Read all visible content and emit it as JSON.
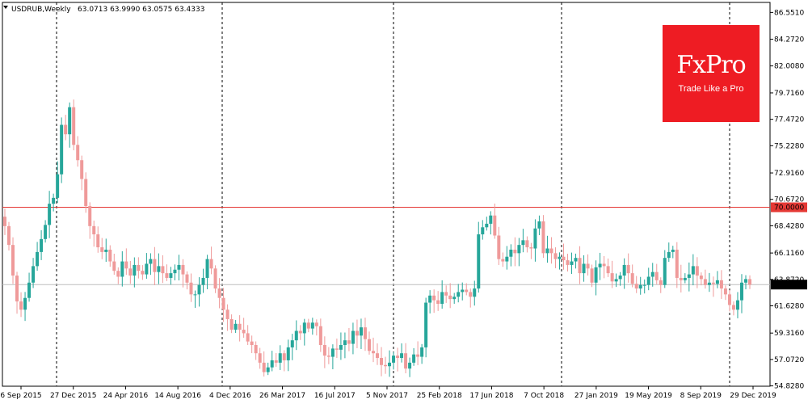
{
  "header": {
    "symbol": "USDRUB,Weekly",
    "ohlc": "63.0713 63.9990 63.0575 63.4333"
  },
  "logo": {
    "brand": "FxPro",
    "tagline": "Trade Like a Pro"
  },
  "colors": {
    "up": "#26a69a",
    "down": "#ef9a9a",
    "level_line": "#e53935",
    "price_line": "#bdbdbd",
    "logo_bg": "#ee1c23"
  },
  "chart_data": {
    "type": "candlestick",
    "title": "USDRUB,Weekly",
    "ylim": [
      54.8,
      87.4
    ],
    "y_ticks": [
      "86.5510",
      "84.2720",
      "82.0080",
      "79.7160",
      "77.4720",
      "75.2280",
      "72.9160",
      "70.6720",
      "68.4280",
      "66.1160",
      "63.8720",
      "61.6280",
      "59.3160",
      "57.0720",
      "54.8280"
    ],
    "x_ticks": [
      "6 Sep 2015",
      "27 Dec 2015",
      "24 Apr 2016",
      "14 Aug 2016",
      "4 Dec 2016",
      "26 Mar 2017",
      "16 Jul 2017",
      "5 Nov 2017",
      "25 Feb 2018",
      "17 Jun 2018",
      "7 Oct 2018",
      "27 Jan 2019",
      "19 May 2019",
      "8 Sep 2019",
      "29 Dec 2019"
    ],
    "period_separators": [
      "27 Dec 2015",
      "4 Dec 2016",
      "5 Nov 2017",
      "7 Oct 2018",
      "29 Dec 2019"
    ],
    "level_line": {
      "value": 70.0,
      "label": "70.0000"
    },
    "current_price": {
      "value": 63.4333,
      "label": "63.4333"
    },
    "close": [
      68.4,
      66.8,
      64.2,
      62.0,
      61.3,
      62.3,
      63.6,
      65.0,
      66.2,
      67.3,
      68.5,
      70.3,
      70.8,
      72.8,
      77.0,
      76.2,
      78.5,
      75.3,
      74.0,
      72.4,
      70.1,
      68.4,
      67.7,
      66.6,
      66.2,
      66.4,
      65.4,
      64.6,
      64.1,
      65.4,
      64.8,
      64.2,
      65.1,
      64.6,
      64.3,
      65.2,
      65.6,
      64.5,
      65.0,
      64.4,
      64.0,
      64.4,
      64.7,
      65.1,
      64.3,
      63.6,
      62.6,
      62.6,
      63.4,
      64.0,
      65.6,
      64.8,
      63.1,
      62.3,
      61.3,
      60.5,
      59.6,
      60.1,
      59.6,
      59.3,
      58.6,
      58.3,
      57.6,
      56.8,
      56.0,
      56.4,
      57.0,
      56.8,
      57.6,
      57.0,
      58.1,
      58.7,
      59.5,
      59.3,
      60.2,
      59.7,
      60.2,
      59.9,
      58.3,
      57.4,
      57.3,
      58.0,
      57.9,
      58.3,
      58.7,
      58.4,
      59.5,
      59.1,
      59.8,
      58.8,
      57.8,
      57.6,
      57.2,
      56.6,
      56.5,
      56.8,
      57.4,
      57.2,
      57.6,
      56.3,
      56.8,
      57.5,
      57.3,
      58.1,
      61.9,
      62.5,
      62.1,
      61.8,
      62.8,
      62.5,
      62.2,
      62.4,
      62.8,
      63.0,
      62.8,
      62.4,
      63.1,
      67.7,
      68.3,
      68.6,
      69.3,
      67.6,
      65.6,
      65.4,
      65.8,
      66.4,
      66.1,
      66.8,
      67.2,
      66.6,
      66.5,
      68.2,
      68.8,
      66.1,
      66.5,
      66.1,
      65.6,
      65.8,
      65.5,
      65.1,
      65.4,
      65.7,
      64.4,
      65.2,
      64.8,
      63.6,
      64.9,
      65.2,
      65.0,
      64.4,
      63.7,
      63.9,
      64.2,
      65.1,
      64.4,
      63.5,
      63.1,
      63.4,
      63.4,
      64.1,
      64.5,
      63.8,
      63.4,
      65.7,
      66.2,
      66.4,
      64.0,
      63.8,
      64.0,
      64.3,
      65.0,
      64.2,
      63.9,
      63.4,
      63.6,
      63.5,
      63.8,
      63.1,
      62.6,
      61.7,
      61.3,
      62.1,
      63.6,
      63.9,
      63.43
    ]
  }
}
